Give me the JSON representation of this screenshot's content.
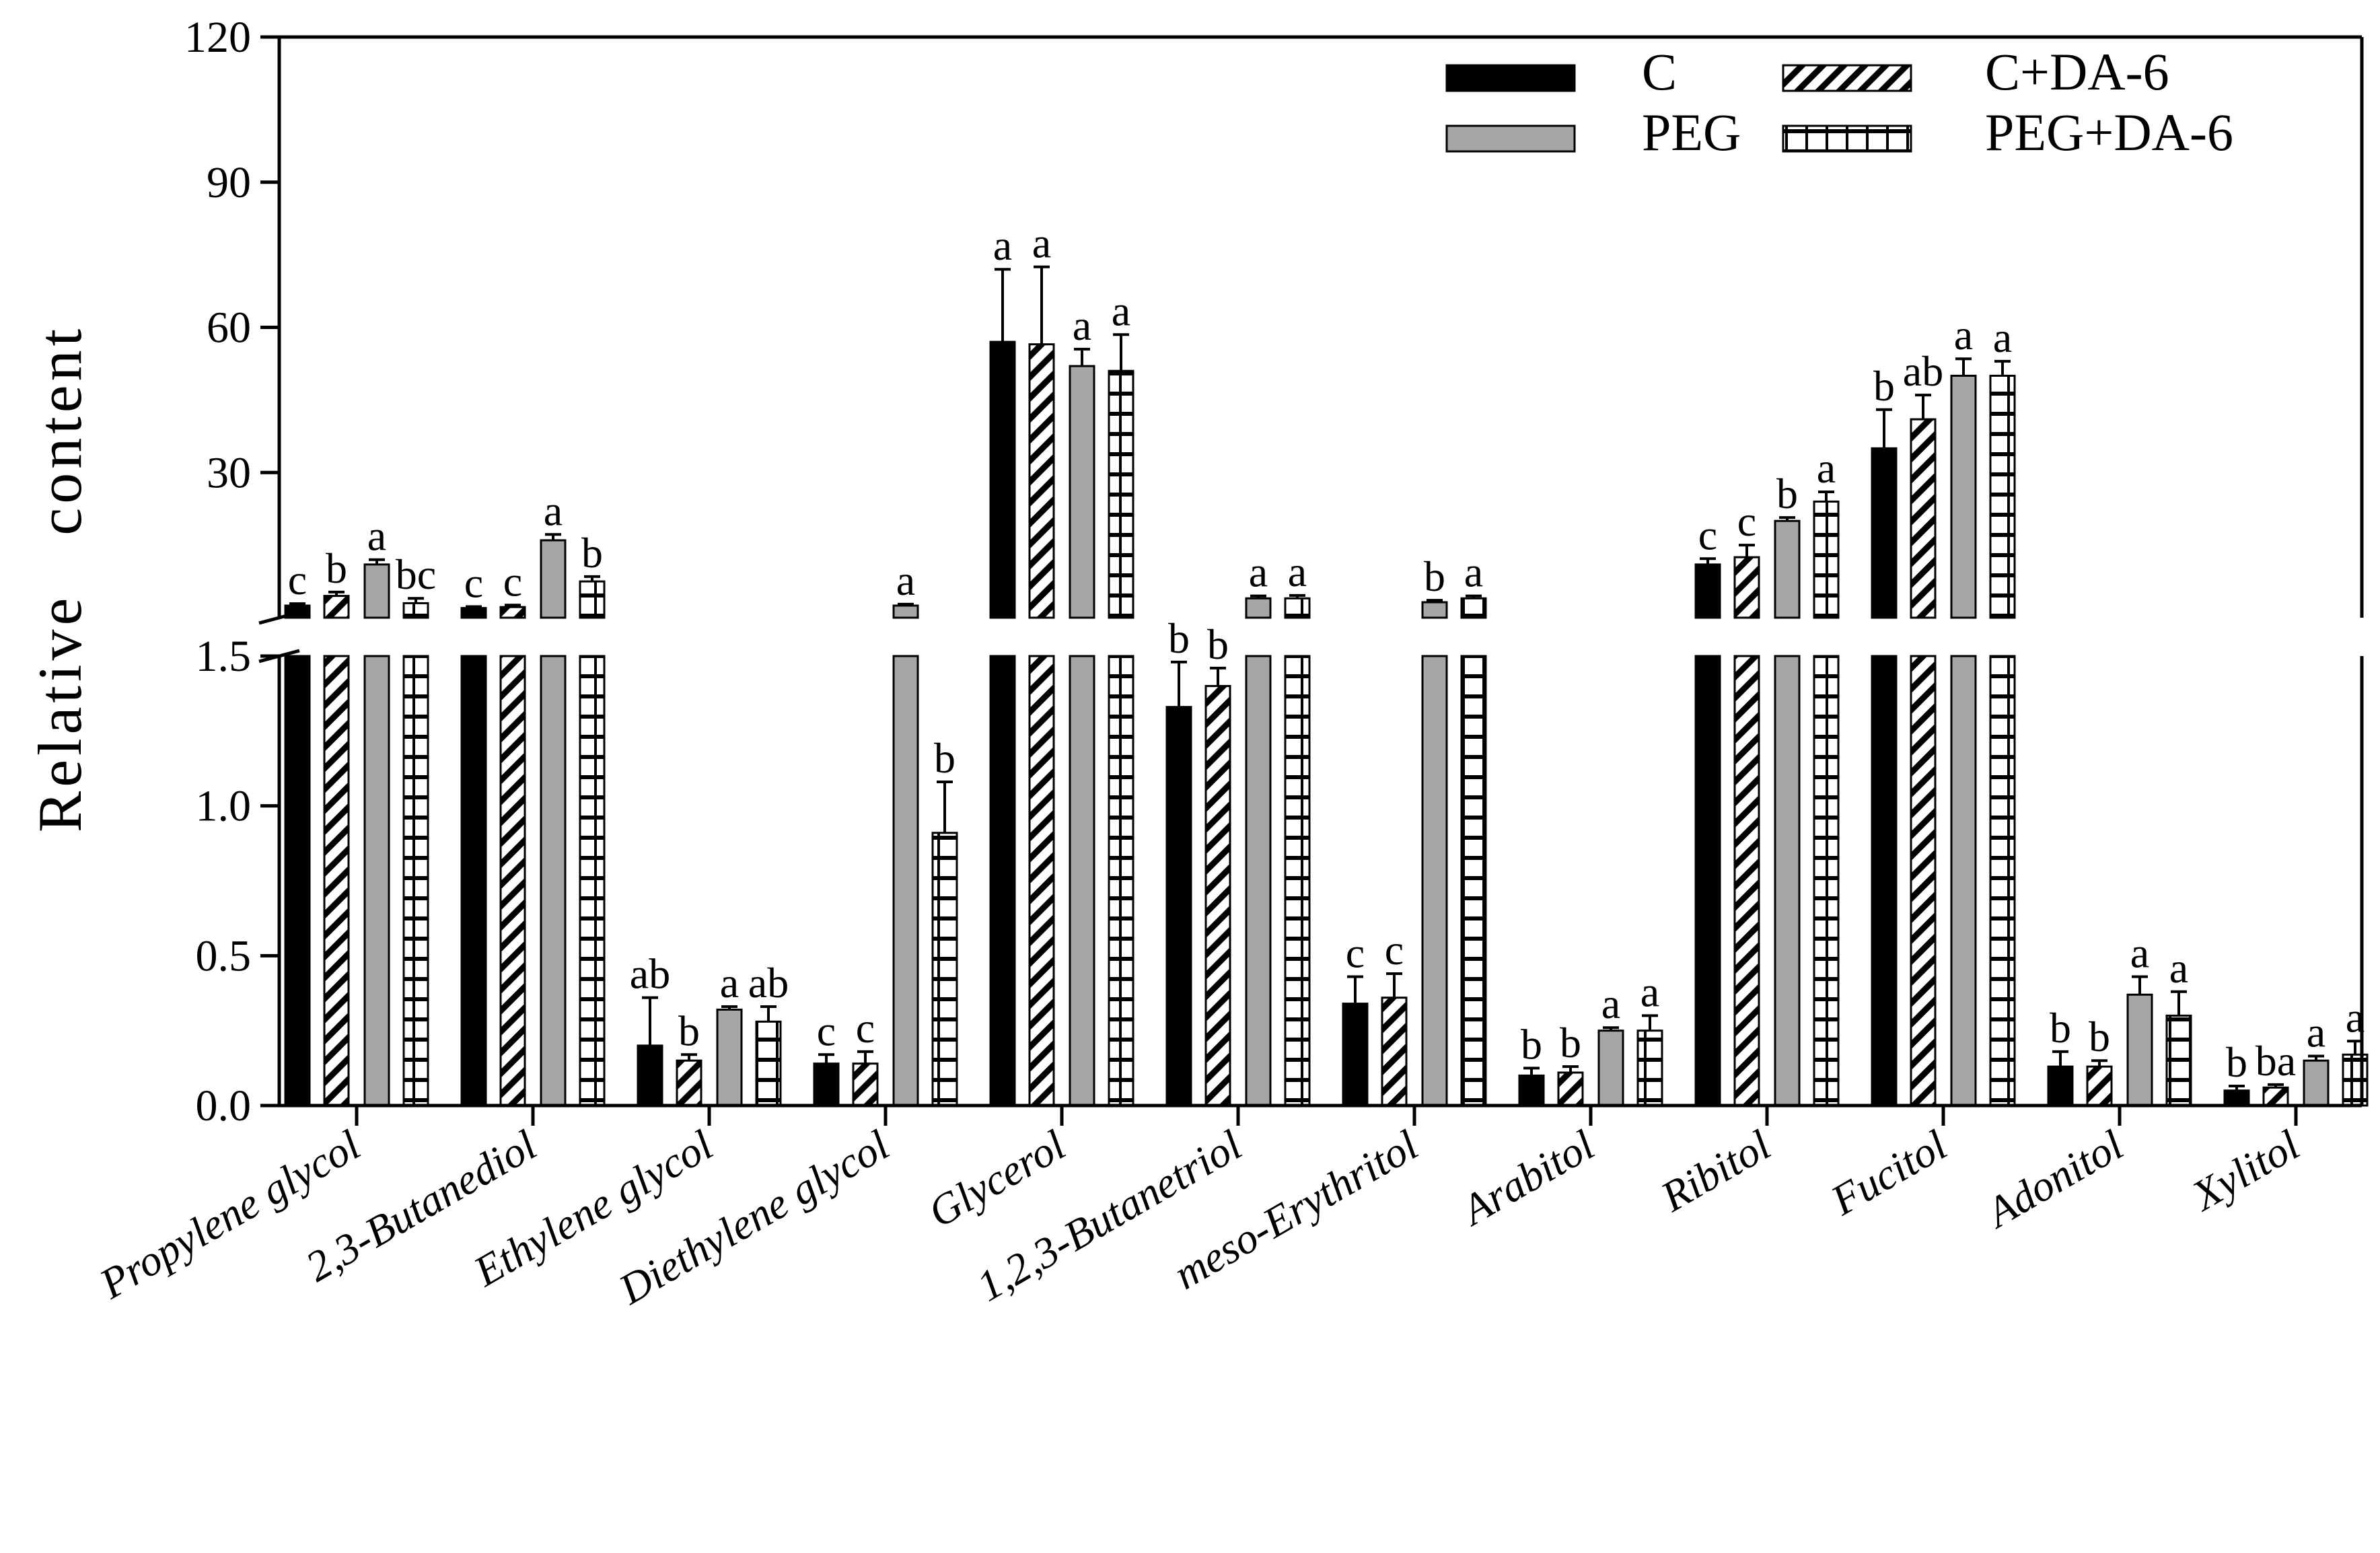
{
  "chart_data": {
    "type": "bar",
    "ylabel": "Relative   content",
    "xlabel": "",
    "title": "",
    "axis_break": {
      "lower_range": [
        0,
        1.5
      ],
      "upper_range": [
        0,
        120
      ]
    },
    "lower_ticks": [
      "0.0",
      "0.5",
      "1.0",
      "1.5"
    ],
    "upper_ticks": [
      "30",
      "60",
      "90",
      "120"
    ],
    "legend_position": "top-right",
    "categories": [
      "Propylene glycol",
      "2,3-Butanediol",
      "Ethylene glycol",
      "Diethylene glycol",
      "Glycerol",
      "1,2,3-Butanetriol",
      "meso-Erythritol",
      "Arabitol",
      "Ribitol",
      "Fucitol",
      "Adonitol",
      "Xylitol"
    ],
    "series": [
      {
        "name": "C",
        "color": "#000000",
        "pattern": "solid",
        "values": [
          2.5,
          2.0,
          0.2,
          0.14,
          57,
          1.33,
          0.34,
          0.1,
          11,
          35,
          0.13,
          0.05
        ],
        "errors": [
          0.4,
          0.3,
          0.16,
          0.03,
          15,
          0.15,
          0.09,
          0.025,
          1.2,
          8,
          0.05,
          0.015
        ],
        "letters": [
          "c",
          "c",
          "ab",
          "c",
          "a",
          "b",
          "c",
          "b",
          "c",
          "b",
          "b",
          "b"
        ]
      },
      {
        "name": "C+DA-6",
        "color": "#ffffff",
        "pattern": "diagonal",
        "values": [
          4.5,
          2.2,
          0.15,
          0.14,
          56.5,
          1.4,
          0.36,
          0.11,
          12.5,
          41,
          0.13,
          0.06
        ],
        "errors": [
          0.8,
          0.4,
          0.02,
          0.04,
          16,
          0.06,
          0.08,
          0.02,
          2.5,
          5,
          0.02,
          0.01
        ],
        "letters": [
          "b",
          "c",
          "b",
          "c",
          "a",
          "b",
          "c",
          "b",
          "c",
          "ab",
          "b",
          "ba"
        ]
      },
      {
        "name": "PEG",
        "color": "#a6a6a6",
        "pattern": "solid",
        "values": [
          11,
          16,
          0.32,
          2.5,
          52,
          4.0,
          3.2,
          0.25,
          20,
          50,
          0.37,
          0.15
        ],
        "errors": [
          1.0,
          1.2,
          0.01,
          0.3,
          3.5,
          0.5,
          0.4,
          0.01,
          0.7,
          3.5,
          0.06,
          0.015
        ],
        "letters": [
          "a",
          "a",
          "a",
          "a",
          "a",
          "a",
          "b",
          "a",
          "b",
          "a",
          "a",
          "a"
        ]
      },
      {
        "name": "PEG+DA-6",
        "color": "#ffffff",
        "pattern": "grid",
        "values": [
          3.0,
          7.5,
          0.28,
          0.91,
          51,
          4.0,
          4.0,
          0.25,
          24,
          50,
          0.3,
          0.17
        ],
        "errors": [
          1.0,
          1.0,
          0.05,
          0.17,
          7.5,
          0.6,
          0.5,
          0.05,
          2.0,
          3.0,
          0.08,
          0.045
        ],
        "letters": [
          "bc",
          "b",
          "ab",
          "b",
          "a",
          "a",
          "a",
          "a",
          "a",
          "a",
          "a",
          "a"
        ]
      }
    ]
  }
}
